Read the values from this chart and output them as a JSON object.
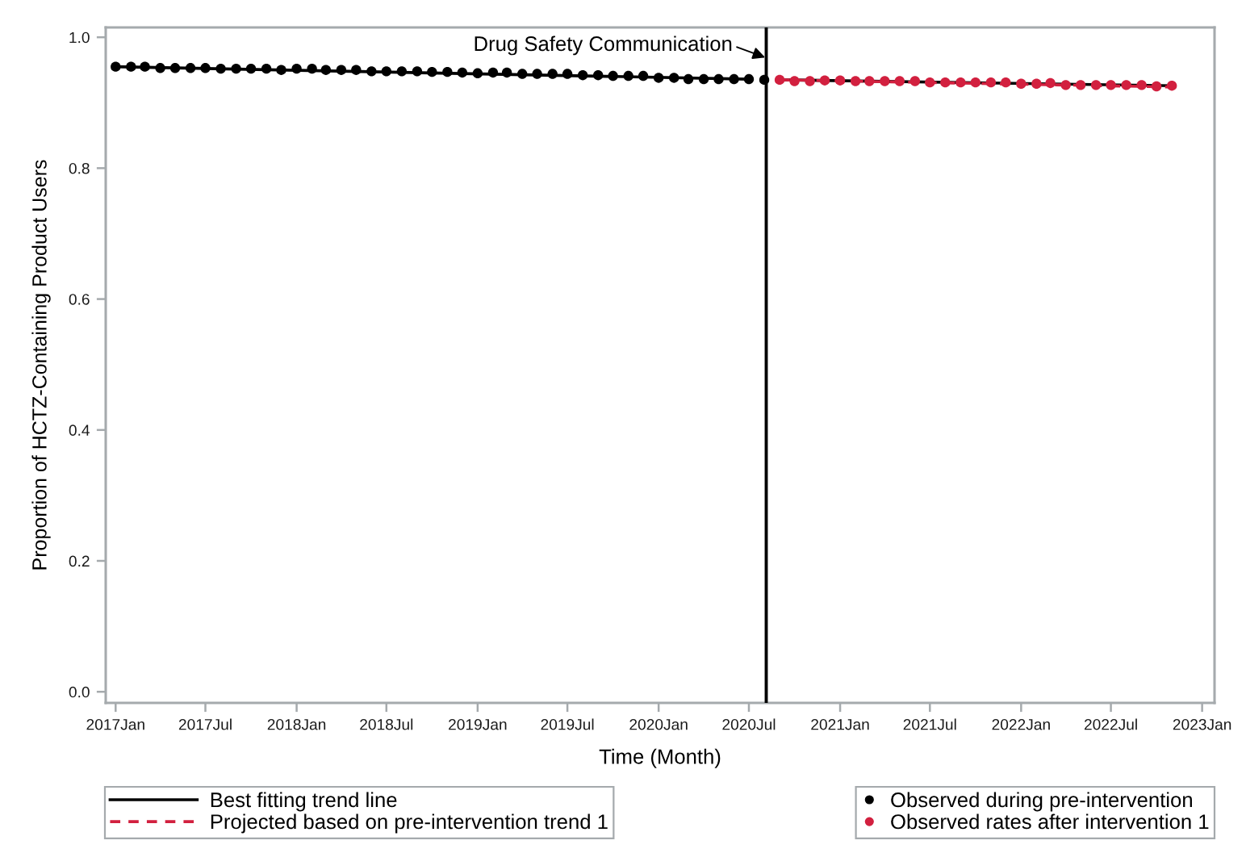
{
  "chart_data": {
    "type": "line",
    "xlabel": "Time (Month)",
    "ylabel": "Proportion of HCTZ-Containing Product Users",
    "xlim": [
      "2016-12-12",
      "2023-01-26"
    ],
    "xticks": [
      {
        "value": "2017-01",
        "label": "2017Jan"
      },
      {
        "value": "2017-07",
        "label": "2017Jul"
      },
      {
        "value": "2018-01",
        "label": "2018Jan"
      },
      {
        "value": "2018-07",
        "label": "2018Jul"
      },
      {
        "value": "2019-01",
        "label": "2019Jan"
      },
      {
        "value": "2019-07",
        "label": "2019Jul"
      },
      {
        "value": "2020-01",
        "label": "2020Jan"
      },
      {
        "value": "2020-07",
        "label": "2020Jul"
      },
      {
        "value": "2021-01",
        "label": "2021Jan"
      },
      {
        "value": "2021-07",
        "label": "2021Jul"
      },
      {
        "value": "2022-01",
        "label": "2022Jan"
      },
      {
        "value": "2022-07",
        "label": "2022Jul"
      },
      {
        "value": "2023-01",
        "label": "2023Jan"
      }
    ],
    "ylim": [
      -0.017,
      1.015
    ],
    "yticks": [
      {
        "value": 0,
        "label": "0.0"
      },
      0.2,
      0.4,
      0.6,
      0.8,
      {
        "value": 1,
        "label": "1.0"
      }
    ],
    "legend": "bottom",
    "ref_lines": [
      {
        "axis": "x",
        "value": "2020-08-05",
        "label": "Drug Safety Communication",
        "color": "#000000"
      }
    ],
    "series": [
      {
        "name": "Best fitting trend line",
        "color": "#000000",
        "line_style": "solid",
        "x": [
          "2017-01",
          "2020-07",
          "2020-08",
          "2020-09",
          "2022-11"
        ],
        "values": [
          0.955,
          0.936,
          null,
          0.935,
          0.926
        ]
      },
      {
        "name": "Projected based on pre-intervention trend 1",
        "color": "#d2203f",
        "line_style": "dashed",
        "x": [
          "2020-09",
          "2022-11"
        ],
        "values": [
          0.935,
          0.924
        ]
      },
      {
        "name": "Observed during pre-intervention",
        "type": "scatter",
        "color": "#000000",
        "marker": "circle",
        "x": [
          "2017-01",
          "2017-02",
          "2017-03",
          "2017-04",
          "2017-05",
          "2017-06",
          "2017-07",
          "2017-08",
          "2017-09",
          "2017-10",
          "2017-11",
          "2017-12",
          "2018-01",
          "2018-02",
          "2018-03",
          "2018-04",
          "2018-05",
          "2018-06",
          "2018-07",
          "2018-08",
          "2018-09",
          "2018-10",
          "2018-11",
          "2018-12",
          "2019-01",
          "2019-02",
          "2019-03",
          "2019-04",
          "2019-05",
          "2019-06",
          "2019-07",
          "2019-08",
          "2019-09",
          "2019-10",
          "2019-11",
          "2019-12",
          "2020-01",
          "2020-02",
          "2020-03",
          "2020-04",
          "2020-05",
          "2020-06",
          "2020-07",
          "2020-08"
        ],
        "values": [
          0.955,
          0.955,
          0.955,
          0.953,
          0.953,
          0.953,
          0.953,
          0.952,
          0.952,
          0.952,
          0.952,
          0.95,
          0.952,
          0.952,
          0.95,
          0.95,
          0.95,
          0.948,
          0.948,
          0.948,
          0.948,
          0.947,
          0.947,
          0.946,
          0.945,
          0.946,
          0.946,
          0.944,
          0.944,
          0.944,
          0.944,
          0.942,
          0.942,
          0.941,
          0.941,
          0.941,
          0.938,
          0.938,
          0.936,
          0.936,
          0.936,
          0.936,
          0.936,
          0.935
        ]
      },
      {
        "name": "Observed rates after intervention 1",
        "type": "scatter",
        "color": "#d2203f",
        "marker": "circle",
        "x": [
          "2020-09",
          "2020-10",
          "2020-11",
          "2020-12",
          "2021-01",
          "2021-02",
          "2021-03",
          "2021-04",
          "2021-05",
          "2021-06",
          "2021-07",
          "2021-08",
          "2021-09",
          "2021-10",
          "2021-11",
          "2021-12",
          "2022-01",
          "2022-02",
          "2022-03",
          "2022-04",
          "2022-05",
          "2022-06",
          "2022-07",
          "2022-08",
          "2022-09",
          "2022-10",
          "2022-11"
        ],
        "values": [
          0.935,
          0.933,
          0.933,
          0.934,
          0.934,
          0.933,
          0.933,
          0.933,
          0.933,
          0.933,
          0.931,
          0.931,
          0.931,
          0.931,
          0.931,
          0.931,
          0.929,
          0.929,
          0.93,
          0.927,
          0.927,
          0.927,
          0.927,
          0.927,
          0.927,
          0.925,
          0.926
        ]
      }
    ]
  }
}
